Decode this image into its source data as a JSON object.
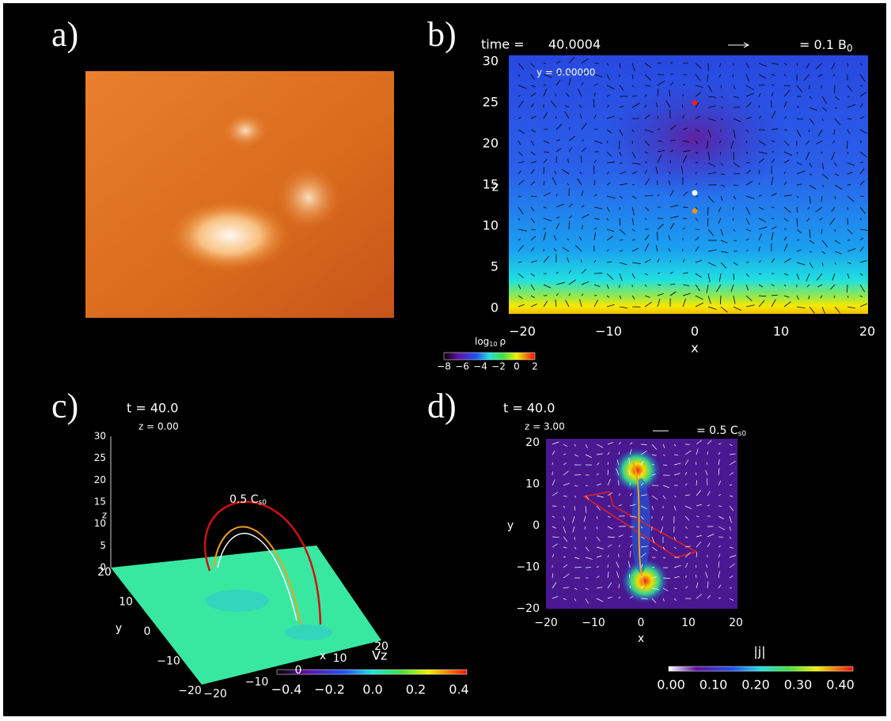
{
  "figure": {
    "a": {
      "label": "a)"
    },
    "b": {
      "label": "b)",
      "time_label": "time =",
      "time": "40.0004",
      "scale_text": "= 0.1 B",
      "scale_sub": "0",
      "slice": "y = 0.00000",
      "x_label": "x",
      "y_label": "z",
      "xticks": [
        "−20",
        "−10",
        "0",
        "10",
        "20"
      ],
      "yticks": [
        "0",
        "5",
        "10",
        "15",
        "20",
        "25",
        "30"
      ],
      "cbar_title": "log",
      "cbar_title_sub": "10",
      "cbar_var": "ρ",
      "cbar_ticks": [
        "−8",
        "−6",
        "−4",
        "−2",
        "0",
        "2"
      ]
    },
    "c": {
      "label": "c)",
      "time": "t = 40.0",
      "slice": "z = 0.00",
      "scale_text": "0.5 C",
      "scale_sub": "s0",
      "x_label": "x",
      "y_label": "y",
      "z_label": "z",
      "xticks": [
        "−20",
        "−10",
        "0",
        "10",
        "20"
      ],
      "yticks": [
        "20",
        "10",
        "0",
        "−10",
        "−20"
      ],
      "zticks": [
        "0",
        "5",
        "10",
        "15",
        "20",
        "25",
        "30"
      ],
      "cbar_title": "Vz",
      "cbar_ticks": [
        "−0.4",
        "−0.2",
        "0.0",
        "0.2",
        "0.4"
      ]
    },
    "d": {
      "label": "d)",
      "time": "t = 40.0",
      "slice": "z = 3.00",
      "scale_text": "= 0.5 C",
      "scale_sub": "s0",
      "x_label": "x",
      "y_label": "y",
      "xticks": [
        "−20",
        "−10",
        "0",
        "10",
        "20"
      ],
      "yticks": [
        "20",
        "10",
        "0",
        "−10",
        "−20"
      ],
      "cbar_title": "|j|",
      "cbar_ticks": [
        "0.00",
        "0.10",
        "0.20",
        "0.30",
        "0.40"
      ]
    }
  }
}
